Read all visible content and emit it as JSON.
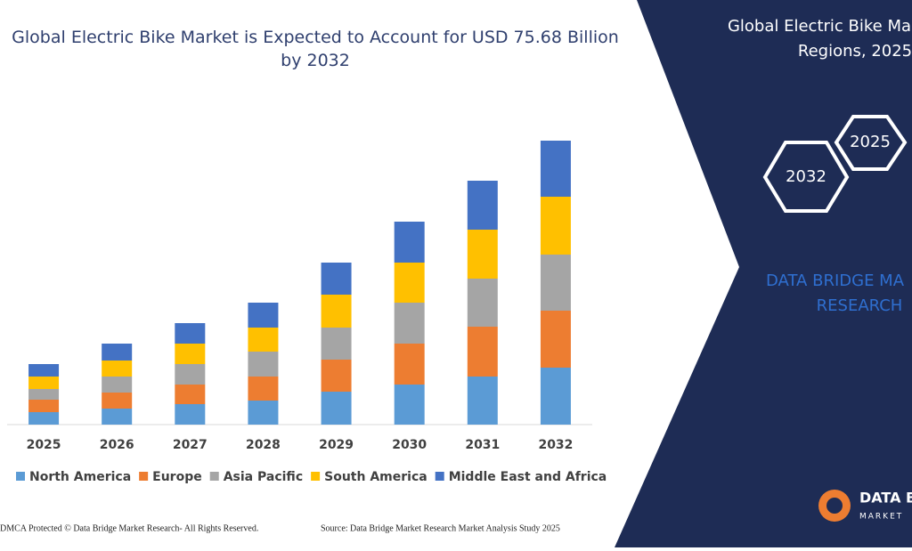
{
  "chart_data": {
    "type": "stacked-bar",
    "title": "Global Electric Bike Market is Expected to Account for USD 75.68 Billion by 2032",
    "categories": [
      "2025",
      "2026",
      "2027",
      "2028",
      "2029",
      "2030",
      "2031",
      "2032"
    ],
    "series": [
      {
        "name": "North America",
        "color": "#5b9bd5",
        "values": [
          14,
          18,
          23,
          27,
          37,
          45,
          54,
          64
        ]
      },
      {
        "name": "Europe",
        "color": "#ed7d31",
        "values": [
          14,
          18,
          22,
          27,
          36,
          46,
          56,
          64
        ]
      },
      {
        "name": "Asia Pacific",
        "color": "#a5a5a5",
        "values": [
          12,
          18,
          23,
          28,
          36,
          46,
          54,
          63
        ]
      },
      {
        "name": "South America",
        "color": "#ffc000",
        "values": [
          14,
          18,
          23,
          27,
          37,
          45,
          55,
          65
        ]
      },
      {
        "name": "Middle East and Africa",
        "color": "#4472c4",
        "values": [
          14,
          19,
          23,
          28,
          36,
          46,
          55,
          63
        ]
      }
    ],
    "legend": "bottom"
  },
  "side_panel": {
    "title_line1": "Global Electric Bike Ma",
    "title_line2": "Regions, 2025",
    "hex_left": "2032",
    "hex_right": "2025",
    "brand_line1": "DATA BRIDGE MA",
    "brand_line2": "RESEARCH",
    "logo_line1": "DATA B",
    "logo_line2": "MARKET"
  },
  "footer": {
    "left": "DMCA Protected © Data Bridge Market Research- All Rights Reserved.",
    "right": "Source: Data Bridge Market Research Market Analysis Study 2025"
  }
}
